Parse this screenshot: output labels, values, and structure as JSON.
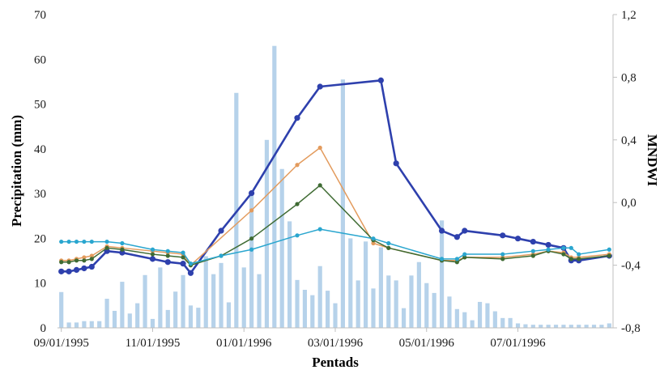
{
  "chart_data": {
    "type": "bar+line",
    "xlabel": "Pentads",
    "ylabel_left": "Precipitation (mm)",
    "ylabel_right": "MNDWI",
    "y_left_lim": [
      0,
      70
    ],
    "y_left_ticks": [
      "0",
      "10",
      "20",
      "30",
      "40",
      "50",
      "60",
      "70"
    ],
    "y_right_lim": [
      -0.8,
      1.2
    ],
    "y_right_ticks": [
      "-0,8",
      "-0,4",
      "0,0",
      "0,4",
      "0,8",
      "1,2"
    ],
    "x_tick_labels": [
      "09/01/1995",
      "11/01/1995",
      "01/01/1996",
      "03/01/1996",
      "05/01/1996",
      "07/01/1996"
    ],
    "x_tick_pentads": [
      0,
      12,
      24,
      36,
      48,
      60
    ],
    "n_pentads": 73,
    "grid": false,
    "precipitation": {
      "color": "#b6d2ea",
      "values": [
        8.0,
        1.2,
        1.2,
        1.5,
        1.5,
        1.5,
        6.5,
        3.8,
        10.3,
        3.2,
        5.5,
        11.8,
        2.0,
        13.5,
        4.0,
        8.1,
        11.8,
        5.0,
        4.5,
        16.0,
        12.0,
        14.5,
        5.7,
        52.5,
        13.5,
        30.0,
        12.0,
        42.0,
        63.0,
        35.5,
        23.8,
        10.7,
        8.5,
        7.3,
        13.8,
        8.3,
        5.5,
        55.5,
        20.0,
        10.6,
        19.3,
        8.8,
        18.0,
        11.7,
        10.6,
        4.4,
        11.7,
        14.7,
        10.0,
        7.8,
        24.0,
        7.0,
        4.2,
        3.5,
        1.7,
        5.8,
        5.5,
        3.7,
        2.2,
        2.2,
        1.0,
        0.8,
        0.7,
        0.7,
        0.7,
        0.7,
        0.7,
        0.7,
        0.7,
        0.7,
        0.7,
        0.7,
        1.0
      ]
    },
    "series": [
      {
        "color": "#2e40ad",
        "marker_radius": 3.6,
        "stroke_width": 2.6,
        "points": [
          [
            0,
            -0.44
          ],
          [
            1,
            -0.44
          ],
          [
            2,
            -0.43
          ],
          [
            3,
            -0.42
          ],
          [
            4,
            -0.41
          ],
          [
            6,
            -0.31
          ],
          [
            8,
            -0.32
          ],
          [
            12,
            -0.36
          ],
          [
            14,
            -0.38
          ],
          [
            16,
            -0.39
          ],
          [
            17,
            -0.45
          ],
          [
            21,
            -0.18
          ],
          [
            25,
            0.06
          ],
          [
            31,
            0.54
          ],
          [
            34,
            0.74
          ],
          [
            42,
            0.78
          ],
          [
            44,
            0.25
          ],
          [
            50,
            -0.18
          ],
          [
            52,
            -0.22
          ],
          [
            53,
            -0.18
          ],
          [
            58,
            -0.21
          ],
          [
            60,
            -0.23
          ],
          [
            62,
            -0.25
          ],
          [
            64,
            -0.27
          ],
          [
            66,
            -0.29
          ],
          [
            67,
            -0.37
          ],
          [
            68,
            -0.37
          ],
          [
            72,
            -0.34
          ]
        ]
      },
      {
        "color": "#e39b5d",
        "marker_radius": 2.6,
        "stroke_width": 1.5,
        "points": [
          [
            0,
            -0.37
          ],
          [
            1,
            -0.37
          ],
          [
            2,
            -0.36
          ],
          [
            3,
            -0.35
          ],
          [
            4,
            -0.34
          ],
          [
            6,
            -0.28
          ],
          [
            8,
            -0.29
          ],
          [
            12,
            -0.31
          ],
          [
            14,
            -0.32
          ],
          [
            16,
            -0.33
          ],
          [
            17,
            -0.4
          ],
          [
            25,
            -0.05
          ],
          [
            31,
            0.24
          ],
          [
            34,
            0.35
          ],
          [
            41,
            -0.26
          ],
          [
            43,
            -0.29
          ],
          [
            50,
            -0.37
          ],
          [
            52,
            -0.37
          ],
          [
            53,
            -0.35
          ],
          [
            58,
            -0.35
          ],
          [
            62,
            -0.33
          ],
          [
            64,
            -0.31
          ],
          [
            66,
            -0.32
          ],
          [
            67,
            -0.35
          ],
          [
            68,
            -0.35
          ],
          [
            72,
            -0.33
          ]
        ]
      },
      {
        "color": "#3f6b33",
        "marker_radius": 2.6,
        "stroke_width": 1.5,
        "points": [
          [
            0,
            -0.38
          ],
          [
            1,
            -0.38
          ],
          [
            2,
            -0.37
          ],
          [
            3,
            -0.37
          ],
          [
            4,
            -0.36
          ],
          [
            6,
            -0.29
          ],
          [
            8,
            -0.3
          ],
          [
            12,
            -0.33
          ],
          [
            14,
            -0.34
          ],
          [
            16,
            -0.35
          ],
          [
            17,
            -0.4
          ],
          [
            21,
            -0.34
          ],
          [
            25,
            -0.23
          ],
          [
            31,
            -0.01
          ],
          [
            34,
            0.11
          ],
          [
            41,
            -0.24
          ],
          [
            43,
            -0.29
          ],
          [
            50,
            -0.37
          ],
          [
            52,
            -0.38
          ],
          [
            53,
            -0.35
          ],
          [
            58,
            -0.36
          ],
          [
            62,
            -0.34
          ],
          [
            64,
            -0.31
          ],
          [
            66,
            -0.33
          ],
          [
            67,
            -0.36
          ],
          [
            68,
            -0.36
          ],
          [
            72,
            -0.34
          ]
        ]
      },
      {
        "color": "#2aa6cf",
        "marker_radius": 2.6,
        "stroke_width": 1.5,
        "points": [
          [
            0,
            -0.25
          ],
          [
            1,
            -0.25
          ],
          [
            2,
            -0.25
          ],
          [
            3,
            -0.25
          ],
          [
            4,
            -0.25
          ],
          [
            6,
            -0.25
          ],
          [
            8,
            -0.26
          ],
          [
            12,
            -0.3
          ],
          [
            14,
            -0.31
          ],
          [
            16,
            -0.32
          ],
          [
            17,
            -0.39
          ],
          [
            21,
            -0.34
          ],
          [
            25,
            -0.3
          ],
          [
            31,
            -0.21
          ],
          [
            34,
            -0.17
          ],
          [
            41,
            -0.23
          ],
          [
            43,
            -0.26
          ],
          [
            50,
            -0.36
          ],
          [
            52,
            -0.36
          ],
          [
            53,
            -0.33
          ],
          [
            58,
            -0.33
          ],
          [
            62,
            -0.31
          ],
          [
            64,
            -0.3
          ],
          [
            66,
            -0.29
          ],
          [
            67,
            -0.29
          ],
          [
            68,
            -0.33
          ],
          [
            72,
            -0.3
          ]
        ]
      }
    ]
  }
}
